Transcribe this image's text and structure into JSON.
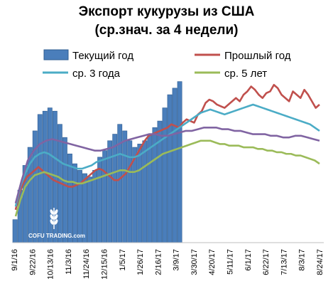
{
  "chart_data": {
    "type": "bar",
    "title_line1": "Экспорт кукурузы из США",
    "title_line2": "(ср.знач. за 4 недели)",
    "xlabel": "",
    "ylabel": "",
    "ylim": [
      0,
      100
    ],
    "grid": false,
    "legend_position": "top",
    "x_ticks": [
      "9/1/16",
      "9/22/16",
      "10/13/16",
      "11/3/16",
      "11/24/16",
      "12/15/16",
      "1/5/17",
      "1/26/17",
      "2/16/17",
      "3/9/17",
      "3/30/17",
      "4/20/17",
      "5/11/17",
      "6/1/17",
      "6/22/17",
      "7/13/17",
      "8/3/17",
      "8/24/17"
    ],
    "weeks": 52,
    "series": [
      {
        "name": "Текущий год",
        "kind": "bar",
        "color": "#4a7ebb",
        "values": [
          14,
          32,
          47,
          58,
          68,
          78,
          80,
          82,
          80,
          72,
          64,
          54,
          48,
          44,
          42,
          40,
          44,
          52,
          56,
          62,
          66,
          72,
          68,
          62,
          58,
          60,
          62,
          66,
          70,
          74,
          82,
          90,
          94,
          98
        ]
      },
      {
        "name": "Прошлый год",
        "kind": "line",
        "color": "#c0504d",
        "values": [
          20,
          30,
          36,
          40,
          42,
          44,
          46,
          44,
          42,
          40,
          38,
          37,
          36,
          35,
          34,
          34,
          35,
          36,
          38,
          40,
          42,
          44,
          45,
          44,
          42,
          40,
          38,
          38,
          40,
          42,
          46,
          50,
          54,
          58,
          62,
          65,
          66,
          67,
          68,
          69,
          70,
          72,
          71,
          70,
          73,
          75,
          74,
          73,
          78,
          80,
          85,
          87,
          86,
          84,
          83,
          82,
          84,
          86,
          88,
          86,
          90,
          92,
          95,
          93,
          90,
          88,
          91,
          92,
          96,
          94,
          90,
          88,
          86,
          92,
          90,
          88,
          93,
          90,
          86,
          82,
          84
        ]
      },
      {
        "name": "ср. 3 года",
        "kind": "line",
        "color": "#4bacc6",
        "values": [
          22,
          34,
          42,
          48,
          52,
          54,
          55,
          54,
          52,
          50,
          48,
          47,
          46,
          45,
          45,
          46,
          47,
          49,
          50,
          51,
          52,
          53,
          54,
          53,
          52,
          52,
          53,
          55,
          57,
          59,
          61,
          63,
          65,
          67,
          69,
          71,
          73,
          75,
          77,
          79,
          80,
          81,
          80,
          79,
          78,
          79,
          80,
          81,
          82,
          83,
          84,
          83,
          82,
          81,
          80,
          79,
          78,
          77,
          76,
          75,
          74,
          73,
          72,
          70,
          68
        ]
      },
      {
        "name": "ср. 5 лет",
        "kind": "line",
        "color": "#9bbb59",
        "values": [
          16,
          26,
          34,
          38,
          41,
          42,
          43,
          42,
          41,
          40,
          38,
          37,
          37,
          36,
          36,
          37,
          38,
          39,
          40,
          41,
          42,
          43,
          44,
          44,
          43,
          43,
          44,
          46,
          48,
          50,
          52,
          54,
          55,
          56,
          57,
          58,
          59,
          60,
          61,
          62,
          62,
          62,
          61,
          60,
          60,
          59,
          59,
          59,
          58,
          58,
          58,
          57,
          57,
          56,
          56,
          55,
          55,
          54,
          54,
          53,
          53,
          52,
          51,
          50,
          48
        ]
      },
      {
        "name": "",
        "kind": "line",
        "color": "#8064a2",
        "values": [
          24,
          38,
          50,
          56,
          60,
          62,
          63,
          62,
          61,
          60,
          59,
          58,
          57,
          56,
          56,
          57,
          58,
          60,
          62,
          63,
          64,
          65,
          66,
          66,
          65,
          65,
          66,
          67,
          68,
          68,
          69,
          70,
          70,
          70,
          69,
          69,
          68,
          68,
          67,
          66,
          66,
          66,
          65,
          65,
          64,
          64,
          65,
          65,
          64,
          63,
          62
        ]
      }
    ],
    "watermark": "COFU TRADING.com"
  }
}
